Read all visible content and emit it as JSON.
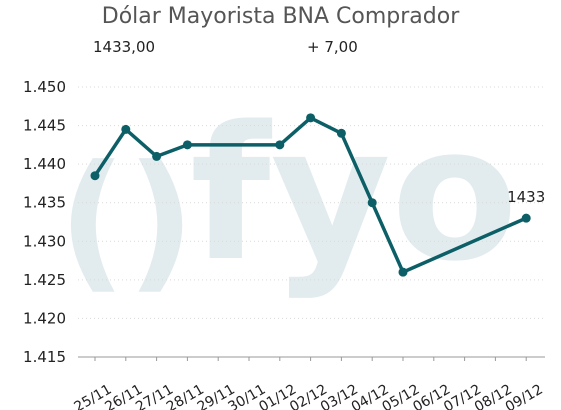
{
  "header": {
    "title": "Dólar Mayorista BNA Comprador",
    "price": "1433,00",
    "change": "+ 7,00"
  },
  "watermark": "fyo",
  "colors": {
    "line": "#0c5f66",
    "grid": "#d9d9d9"
  },
  "chart_data": {
    "type": "line",
    "title": "Dólar Mayorista BNA Comprador",
    "categories": [
      "25/11",
      "26/11",
      "27/11",
      "28/11",
      "29/11",
      "30/11",
      "01/12",
      "02/12",
      "03/12",
      "04/12",
      "05/12",
      "06/12",
      "07/12",
      "08/12",
      "09/12"
    ],
    "values": [
      1438.5,
      1444.5,
      1441,
      1442.5,
      null,
      null,
      1442.5,
      1446,
      1444,
      1435,
      1426,
      null,
      null,
      null,
      1433
    ],
    "y_ticks": [
      "1.415",
      "1.420",
      "1.425",
      "1.430",
      "1.435",
      "1.440",
      "1.445",
      "1.450"
    ],
    "y_tick_values": [
      1415,
      1420,
      1425,
      1430,
      1435,
      1440,
      1445,
      1450
    ],
    "ylim": [
      1415,
      1450
    ],
    "last_label": "1433",
    "grid": "horizontal",
    "legend": "none"
  }
}
